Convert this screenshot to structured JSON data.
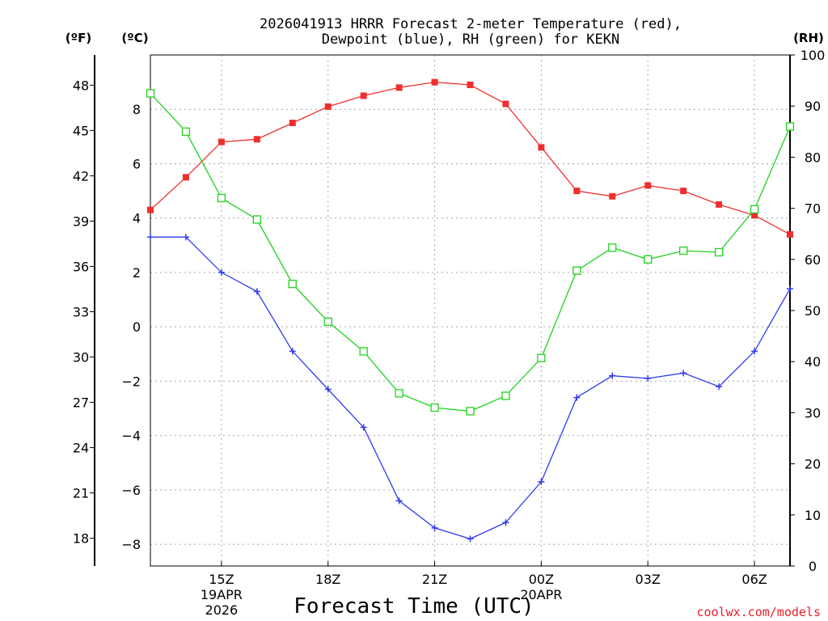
{
  "chart_data": {
    "type": "line",
    "title_line1": "2026041913 HRRR Forecast 2-meter Temperature (red),",
    "title_line2": "Dewpoint (blue), RH (green) for KEKN",
    "xlabel": "Forecast Time (UTC)",
    "credit": "coolwx.com/models",
    "units": {
      "fahrenheit": "(ºF)",
      "celsius": "(ºC)",
      "rh": "(RH)"
    },
    "x": [
      13,
      14,
      15,
      16,
      17,
      18,
      19,
      20,
      21,
      22,
      23,
      24,
      25,
      26,
      27,
      28,
      29,
      30,
      31
    ],
    "xlim": [
      13,
      31
    ],
    "x_ticks": [
      {
        "x": 15,
        "label": "15Z",
        "sub1": "19APR",
        "sub2": "2026"
      },
      {
        "x": 18,
        "label": "18Z",
        "sub1": "",
        "sub2": ""
      },
      {
        "x": 21,
        "label": "21Z",
        "sub1": "",
        "sub2": ""
      },
      {
        "x": 24,
        "label": "00Z",
        "sub1": "20APR",
        "sub2": ""
      },
      {
        "x": 27,
        "label": "03Z",
        "sub1": "",
        "sub2": ""
      },
      {
        "x": 30,
        "label": "06Z",
        "sub1": "",
        "sub2": ""
      }
    ],
    "ylim_celsius": [
      -8.8,
      10.0
    ],
    "celsius_ticks": [
      -8,
      -6,
      -4,
      -2,
      0,
      2,
      4,
      6,
      8
    ],
    "fahrenheit_ticks": [
      18,
      21,
      24,
      27,
      30,
      33,
      36,
      39,
      42,
      45,
      48
    ],
    "ylim_rh": [
      0,
      100
    ],
    "rh_ticks": [
      0,
      10,
      20,
      30,
      40,
      50,
      60,
      70,
      80,
      90,
      100
    ],
    "series": [
      {
        "name": "Temperature",
        "axis": "celsius",
        "color": "#ee2f2f",
        "marker": "filled-square",
        "values": [
          4.3,
          5.5,
          6.8,
          6.9,
          7.5,
          8.1,
          8.5,
          8.8,
          9.0,
          8.9,
          8.2,
          6.6,
          5.0,
          4.8,
          5.2,
          5.0,
          4.5,
          4.1,
          3.4
        ]
      },
      {
        "name": "Dewpoint",
        "axis": "celsius",
        "color": "#2f3bee",
        "marker": "plus",
        "values": [
          3.3,
          3.3,
          2.0,
          1.3,
          -0.9,
          -2.3,
          -3.7,
          -6.4,
          -7.4,
          -7.8,
          -7.2,
          -5.7,
          -2.6,
          -1.8,
          -1.9,
          -1.7,
          -2.2,
          -0.9,
          1.4
        ]
      },
      {
        "name": "RH",
        "axis": "rh",
        "color": "#1ed31e",
        "marker": "open-square",
        "values": [
          92.5,
          85.0,
          72.0,
          67.8,
          55.2,
          47.8,
          42.0,
          33.8,
          31.0,
          30.3,
          33.3,
          40.7,
          57.8,
          62.3,
          60.0,
          61.7,
          61.4,
          69.8,
          86.0
        ]
      }
    ]
  }
}
